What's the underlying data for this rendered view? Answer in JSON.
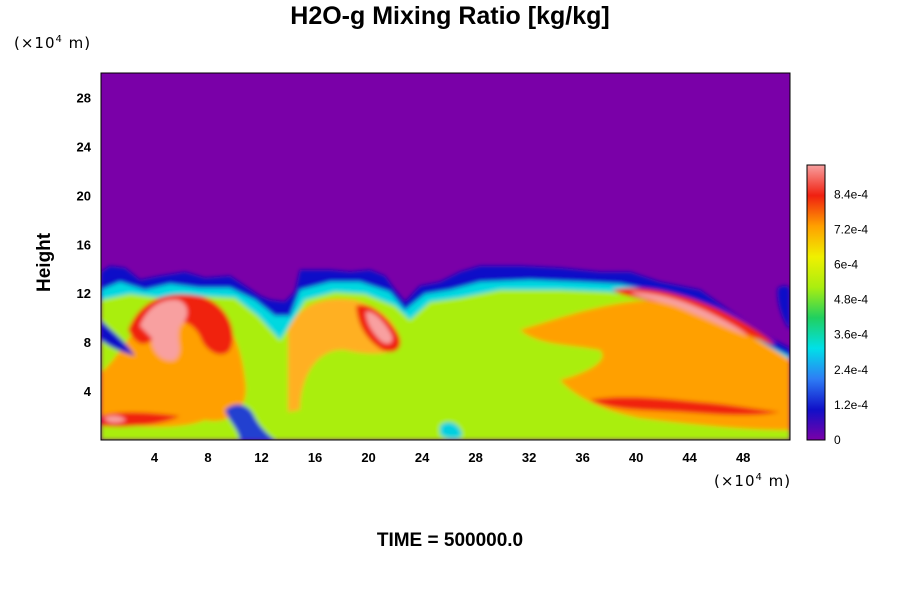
{
  "chart_data": {
    "type": "heatmap",
    "title": "H2O-g Mixing Ratio [kg/kg]",
    "ylabel": "Height",
    "xlabel": "",
    "x_unit": {
      "base": "(×10",
      "exp": "4",
      "suffix": " m)"
    },
    "y_unit": {
      "base": "(×10",
      "exp": "4",
      "suffix": " m)"
    },
    "xlim": [
      0,
      51.5
    ],
    "ylim": [
      0,
      30
    ],
    "x_ticks": [
      "4",
      "8",
      "12",
      "16",
      "20",
      "24",
      "28",
      "32",
      "36",
      "40",
      "44",
      "48"
    ],
    "y_ticks": [
      "4",
      "8",
      "12",
      "16",
      "20",
      "24",
      "28"
    ],
    "colorbar": {
      "range": [
        0,
        0.00094
      ],
      "labels": [
        "0",
        "1.2e-4",
        "2.4e-4",
        "3.6e-4",
        "4.8e-4",
        "6e-4",
        "7.2e-4",
        "8.4e-4"
      ],
      "stops": [
        "#7a00a8",
        "#1010c8",
        "#2e7df5",
        "#00e0e8",
        "#20d060",
        "#aaee10",
        "#f0f000",
        "#ffa000",
        "#f02010",
        "#f8a0a0"
      ]
    },
    "field_description_colors": {
      "background": "#7a00a8",
      "moist_layer": "#aaee10"
    },
    "footer": "TIME = 500000.0"
  }
}
